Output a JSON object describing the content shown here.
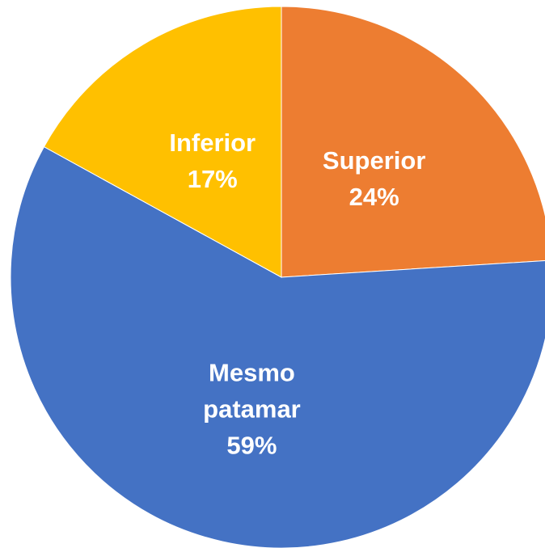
{
  "chart_data": {
    "type": "pie",
    "categories": [
      "Superior",
      "Mesmo patamar",
      "Inferior"
    ],
    "values": [
      24,
      59,
      17
    ],
    "value_labels": [
      "24%",
      "59%",
      "17%"
    ],
    "colors": [
      "#ED7D31",
      "#4472C4",
      "#FFC000"
    ]
  }
}
